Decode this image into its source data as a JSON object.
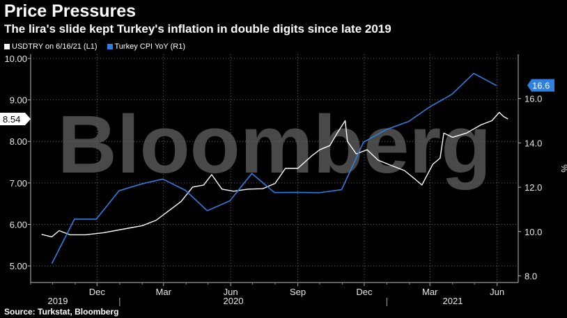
{
  "header": {
    "title": "Price Pressures",
    "subtitle": "The lira's slide kept Turkey's inflation in double digits since late 2019"
  },
  "legend": {
    "usdtry": "USDTRY on 6/16/21 (L1)",
    "cpi": "Turkey CPI YoY (R1)"
  },
  "source": "Source: Turkstat, Bloomberg",
  "watermark": "Bloomberg",
  "colors": {
    "usdtry": "#ffffff",
    "cpi": "#2f7fe0",
    "cpi_badge": "#2f7fe0"
  },
  "chart_data": {
    "type": "line",
    "title": "Price Pressures",
    "subtitle": "The lira's slide kept Turkey's inflation in double digits since late 2019",
    "x_ticks": [
      "Dec",
      "Mar",
      "Jun",
      "Sep",
      "Dec",
      "Mar",
      "Jun"
    ],
    "year_labels": [
      "2019",
      "2020",
      "2021"
    ],
    "left_axis": {
      "ticks": [
        "5.00",
        "6.00",
        "7.00",
        "8.00",
        "9.00",
        "10.00"
      ],
      "range": [
        4.6,
        10.1
      ],
      "last_value_label": "8.54"
    },
    "right_axis": {
      "ticks": [
        "8.0",
        "10.0",
        "12.0",
        "14.0",
        "16.0"
      ],
      "range": [
        7.7,
        18.0
      ],
      "unit": "%",
      "last_value_label": "16.6"
    },
    "grid": true,
    "series": [
      {
        "name": "USDTRY on 6/16/21 (L1)",
        "axis": "left",
        "points": [
          [
            "2019-09-16",
            5.76
          ],
          [
            "2019-09-30",
            5.7
          ],
          [
            "2019-10-10",
            5.85
          ],
          [
            "2019-10-25",
            5.75
          ],
          [
            "2019-11-15",
            5.75
          ],
          [
            "2019-12-10",
            5.8
          ],
          [
            "2020-01-10",
            5.9
          ],
          [
            "2020-02-01",
            5.97
          ],
          [
            "2020-02-20",
            6.1
          ],
          [
            "2020-03-10",
            6.35
          ],
          [
            "2020-03-25",
            6.55
          ],
          [
            "2020-04-10",
            6.9
          ],
          [
            "2020-04-25",
            6.95
          ],
          [
            "2020-05-06",
            7.2
          ],
          [
            "2020-05-20",
            6.85
          ],
          [
            "2020-06-05",
            6.8
          ],
          [
            "2020-06-25",
            6.85
          ],
          [
            "2020-07-15",
            6.86
          ],
          [
            "2020-08-01",
            6.99
          ],
          [
            "2020-08-15",
            7.35
          ],
          [
            "2020-09-01",
            7.35
          ],
          [
            "2020-09-20",
            7.65
          ],
          [
            "2020-10-01",
            7.8
          ],
          [
            "2020-10-15",
            7.9
          ],
          [
            "2020-10-25",
            8.2
          ],
          [
            "2020-11-05",
            8.5
          ],
          [
            "2020-11-08",
            8.0
          ],
          [
            "2020-11-20",
            7.7
          ],
          [
            "2020-12-05",
            7.8
          ],
          [
            "2020-12-20",
            7.55
          ],
          [
            "2021-01-10",
            7.4
          ],
          [
            "2021-01-25",
            7.3
          ],
          [
            "2021-02-08",
            7.1
          ],
          [
            "2021-02-18",
            6.95
          ],
          [
            "2021-03-05",
            7.45
          ],
          [
            "2021-03-15",
            7.6
          ],
          [
            "2021-03-20",
            8.2
          ],
          [
            "2021-04-01",
            8.1
          ],
          [
            "2021-04-20",
            8.2
          ],
          [
            "2021-05-10",
            8.4
          ],
          [
            "2021-05-25",
            8.5
          ],
          [
            "2021-06-04",
            8.7
          ],
          [
            "2021-06-10",
            8.6
          ],
          [
            "2021-06-16",
            8.54
          ]
        ]
      },
      {
        "name": "Turkey CPI YoY (R1)",
        "axis": "right",
        "points": [
          [
            "2019-09-30",
            8.55
          ],
          [
            "2019-10-31",
            10.56
          ],
          [
            "2019-11-30",
            10.56
          ],
          [
            "2019-12-31",
            11.84
          ],
          [
            "2020-01-31",
            12.15
          ],
          [
            "2020-02-29",
            12.37
          ],
          [
            "2020-03-31",
            11.86
          ],
          [
            "2020-04-30",
            10.94
          ],
          [
            "2020-05-31",
            11.39
          ],
          [
            "2020-06-30",
            12.62
          ],
          [
            "2020-07-31",
            11.76
          ],
          [
            "2020-08-31",
            11.77
          ],
          [
            "2020-09-30",
            11.75
          ],
          [
            "2020-10-31",
            11.89
          ],
          [
            "2020-11-30",
            14.03
          ],
          [
            "2020-12-31",
            14.6
          ],
          [
            "2021-01-31",
            14.97
          ],
          [
            "2021-02-28",
            15.61
          ],
          [
            "2021-03-31",
            16.19
          ],
          [
            "2021-04-30",
            17.14
          ],
          [
            "2021-05-31",
            16.59
          ]
        ]
      }
    ]
  }
}
